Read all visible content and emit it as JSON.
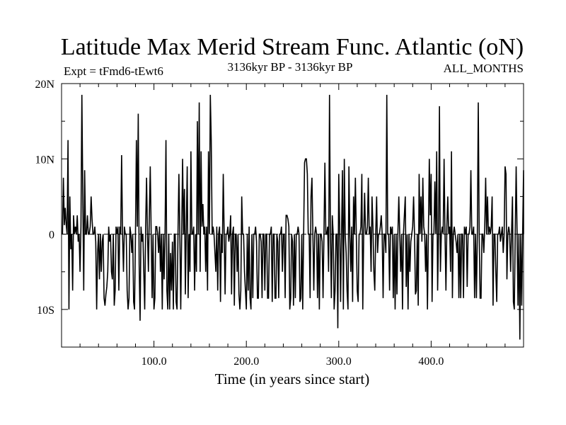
{
  "chart_data": {
    "type": "line",
    "title": "Latitude Max Merid Stream Func. Atlantic (oN)",
    "subtitle_left": "Expt = tFmd6-tEwt6",
    "subtitle_center": "3136kyr BP - 3136kyr BP",
    "subtitle_right": "ALL_MONTHS",
    "xlabel": "Time (in years since start)",
    "ylabel": "",
    "xlim": [
      0,
      500
    ],
    "ylim": [
      -15,
      20
    ],
    "x_ticks": [
      100,
      200,
      300,
      400
    ],
    "x_tick_labels": [
      "100.0",
      "200.0",
      "300.0",
      "400.0"
    ],
    "y_ticks": [
      20,
      10,
      0,
      -10
    ],
    "y_tick_labels": [
      "20N",
      "10N",
      "0",
      "10S"
    ],
    "grid": false,
    "zero_line": "dashed",
    "series": [
      {
        "name": "",
        "color": "#000000",
        "x_start": 1,
        "x_step": 1,
        "values": [
          0,
          7.5,
          1.2,
          3.5,
          1.3,
          0,
          12.5,
          -10,
          5,
          -2,
          0,
          -7.5,
          2.5,
          0,
          1,
          0,
          2.5,
          -1,
          0,
          -5,
          1,
          18.5,
          5,
          -7.5,
          8.5,
          0,
          0,
          2.5,
          0,
          0,
          1,
          5,
          2,
          0,
          0,
          1,
          -1,
          -10,
          -2.5,
          0,
          -6,
          0,
          -5,
          -1,
          0,
          -8.5,
          -9.5,
          -8,
          -7,
          -5,
          1,
          -1,
          0,
          -5,
          -6,
          0,
          -9.5,
          -7.5,
          1,
          0,
          1,
          -7.5,
          1,
          0,
          10.5,
          0,
          -5,
          1,
          0,
          0,
          -7.5,
          -10,
          -8.5,
          1,
          0,
          -2.5,
          0,
          -9,
          -10,
          0,
          12.5,
          1,
          16,
          -4,
          -11.5,
          1,
          -1,
          0,
          -5,
          -10,
          1,
          7.5,
          0,
          -5,
          2.5,
          9,
          0,
          -8.5,
          0,
          -10,
          -8.5,
          1,
          1,
          0,
          -2.5,
          1,
          -5,
          0,
          -10,
          0,
          -6,
          0,
          12.5,
          -7.5,
          -10,
          0,
          -10,
          -2.5,
          -7.5,
          -1,
          -10,
          0,
          0,
          -9,
          -10,
          0,
          8,
          0,
          -10,
          0,
          10,
          0,
          6,
          -8,
          1,
          9,
          -8.5,
          0,
          -5,
          11,
          0,
          0,
          1,
          -7.5,
          0,
          -5,
          15,
          0,
          17.5,
          -5,
          11,
          1,
          4,
          0,
          1,
          -5,
          1,
          -7.5,
          11,
          0,
          18.5,
          12.5,
          0,
          1,
          0,
          -2.5,
          -5,
          1,
          -7.5,
          0,
          1,
          -9,
          0,
          -2.5,
          8,
          0,
          -8,
          0,
          0,
          1,
          -1,
          0,
          2.5,
          -8,
          0,
          1,
          -9.5,
          0,
          0,
          -5,
          0,
          -8,
          -10,
          -7.5,
          5,
          0,
          0,
          -5,
          -7.5,
          -10,
          0,
          -7.5,
          1,
          -8.5,
          -10,
          0,
          -8.5,
          0,
          0,
          1,
          -1,
          -8.5,
          -8.5,
          0,
          0,
          -1,
          -8.5,
          0,
          0,
          -7.5,
          0,
          0,
          -8.5,
          -8.5,
          0,
          0,
          1,
          -9,
          0,
          0,
          -8.5,
          -8.5,
          0,
          -1,
          -8.5,
          0,
          0,
          1,
          -5,
          0,
          0,
          -8.5,
          2.5,
          2.5,
          2,
          1,
          -10,
          -8.5,
          0,
          -1,
          -9.5,
          0,
          -8.5,
          0,
          0,
          1,
          0,
          -9,
          -8.5,
          0,
          -10,
          0,
          9.5,
          10,
          10,
          8,
          0,
          0,
          -8.5,
          5,
          7.5,
          0,
          -7.5,
          0,
          1,
          0,
          -8.5,
          0,
          -10,
          0,
          0,
          -1,
          -8.5,
          0,
          9.5,
          0,
          0,
          1,
          -5,
          18.5,
          0,
          -8.5,
          2.5,
          0,
          -10,
          -7.5,
          0,
          0,
          -12.5,
          8,
          1,
          -9,
          0,
          8.5,
          -10,
          10,
          0,
          -2.5,
          -7.5,
          -10,
          9,
          0,
          -5,
          1,
          -9,
          5,
          0,
          7.5,
          0,
          -7.5,
          -9,
          0,
          0,
          1,
          8,
          -10,
          0,
          5.5,
          0,
          0,
          1,
          7.5,
          0,
          1,
          -5,
          5,
          1,
          -5,
          -7.5,
          0,
          5,
          -2.5,
          0,
          0,
          1,
          2.5,
          0,
          -8.5,
          0,
          0,
          -2.5,
          18.5,
          0,
          0,
          -7.5,
          1,
          0,
          1,
          -8.5,
          0,
          -10,
          0,
          -8,
          0,
          5,
          0,
          -5,
          0,
          -10,
          0,
          2.5,
          5,
          -7,
          0,
          -10,
          0,
          -5,
          -1,
          0,
          1,
          5,
          0,
          -8,
          -7.5,
          0,
          -9.5,
          8,
          0,
          5,
          -1,
          7.5,
          1,
          0,
          -5,
          0,
          -10,
          0,
          10,
          2.5,
          8,
          -9,
          0,
          0,
          7,
          0,
          11,
          -7.5,
          0,
          17,
          -5,
          0,
          1,
          0,
          10,
          0,
          -7.5,
          1,
          5,
          0,
          1,
          -5,
          11,
          -8.5,
          0,
          1,
          0,
          -1,
          -2.5,
          0,
          -8.5,
          0,
          -8.5,
          0,
          0,
          -8.5,
          1,
          0,
          1,
          -7,
          0,
          0,
          1,
          8.5,
          0,
          0,
          1,
          -8.5,
          0,
          -8.5,
          0,
          17.5,
          0,
          -8.5,
          -8.5,
          0,
          0,
          -2.5,
          1,
          7.5,
          0,
          5,
          0,
          1,
          0,
          1,
          5,
          -9.5,
          0,
          0,
          -5,
          -9,
          0,
          0,
          1,
          -1,
          0,
          1,
          -2.5,
          0,
          9,
          8,
          -6,
          0,
          1,
          0,
          -5,
          0,
          5,
          -9,
          -10,
          0,
          9,
          0,
          -9.5,
          0,
          -14,
          0,
          -9.5,
          0,
          8.5,
          7.5,
          0
        ]
      }
    ]
  }
}
